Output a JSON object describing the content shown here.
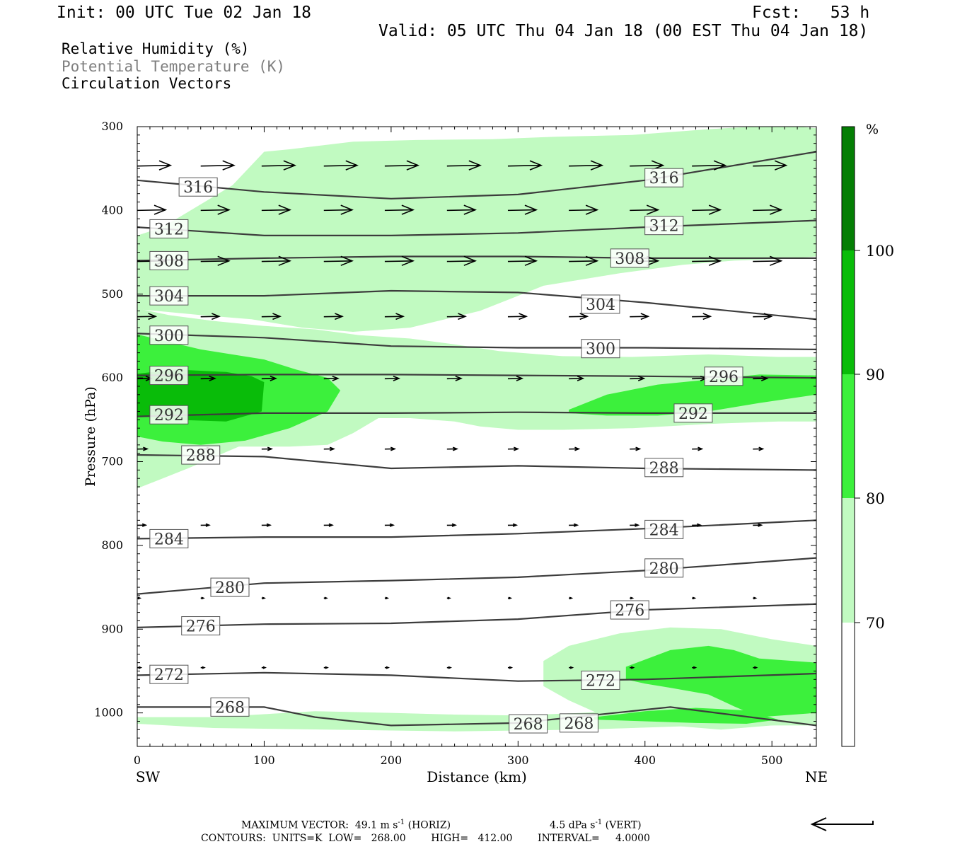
{
  "header": {
    "init": "Init: 00 UTC Tue 02 Jan 18",
    "fcst": "Fcst:   53 h",
    "valid": "Valid: 05 UTC Thu 04 Jan 18 (00 EST Thu 04 Jan 18)"
  },
  "fields": {
    "rh": "Relative Humidity (%)",
    "theta": "Potential Temperature (K)",
    "vectors": "Circulation Vectors"
  },
  "footer": {
    "max_prefix": "MAXIMUM VECTOR:  49.1 m s",
    "max_horiz": " (HORIZ)",
    "max_vert": "4.5 dPa s",
    "max_vert_suffix": " (VERT)",
    "exponent": "-1",
    "contours": "CONTOURS:  UNITS=K  LOW=   268.00        HIGH=   412.00        INTERVAL=     4.0000"
  },
  "colors": {
    "rh_70": "#c1fac1",
    "rh_80": "#3cf03c",
    "rh_90": "#09bc09",
    "rh_100": "#047e04",
    "contour": "#3c3c3c"
  },
  "chart_data": {
    "type": "cross-section",
    "xlabel": "Distance (km)",
    "ylabel": "Pressure (hPa)",
    "xlim": [
      0,
      535
    ],
    "ylim": [
      1040,
      300
    ],
    "x_ticks": [
      0,
      100,
      200,
      300,
      400,
      500
    ],
    "y_ticks": [
      300,
      400,
      500,
      600,
      700,
      800,
      900,
      1000
    ],
    "left_end_label": "SW",
    "right_end_label": "NE",
    "colorbar": {
      "unit": "%",
      "levels": [
        70,
        80,
        90,
        100
      ],
      "labels": [
        "70",
        "80",
        "90",
        "100"
      ]
    },
    "theta_contours": [
      {
        "value": 316,
        "x": [
          0,
          100,
          200,
          300,
          400,
          535
        ],
        "p": [
          364,
          378,
          386,
          381,
          364,
          330
        ]
      },
      {
        "value": 312,
        "x": [
          0,
          100,
          200,
          300,
          400,
          535
        ],
        "p": [
          420,
          430,
          430,
          427,
          420,
          412
        ]
      },
      {
        "value": 308,
        "x": [
          0,
          100,
          200,
          300,
          400,
          535
        ],
        "p": [
          460,
          457,
          455,
          455,
          457,
          457
        ]
      },
      {
        "value": 304,
        "x": [
          0,
          100,
          200,
          300,
          400,
          535
        ],
        "p": [
          502,
          502,
          496,
          498,
          510,
          530
        ]
      },
      {
        "value": 300,
        "x": [
          0,
          100,
          200,
          300,
          400,
          535
        ],
        "p": [
          547,
          552,
          562,
          564,
          564,
          566
        ]
      },
      {
        "value": 296,
        "x": [
          0,
          100,
          200,
          300,
          400,
          535
        ],
        "p": [
          597,
          596,
          596,
          597,
          598,
          600
        ]
      },
      {
        "value": 292,
        "x": [
          0,
          100,
          200,
          300,
          400,
          535
        ],
        "p": [
          646,
          642,
          642,
          641,
          642,
          642
        ]
      },
      {
        "value": 288,
        "x": [
          0,
          100,
          200,
          300,
          400,
          535
        ],
        "p": [
          692,
          694,
          708,
          705,
          708,
          710
        ]
      },
      {
        "value": 284,
        "x": [
          0,
          100,
          200,
          300,
          400,
          535
        ],
        "p": [
          792,
          790,
          790,
          786,
          780,
          770
        ]
      },
      {
        "value": 280,
        "x": [
          0,
          100,
          200,
          300,
          400,
          535
        ],
        "p": [
          858,
          845,
          842,
          838,
          830,
          815
        ]
      },
      {
        "value": 276,
        "x": [
          0,
          100,
          200,
          300,
          400,
          535
        ],
        "p": [
          898,
          894,
          893,
          888,
          877,
          870
        ]
      },
      {
        "value": 272,
        "x": [
          0,
          100,
          200,
          300,
          400,
          535
        ],
        "p": [
          955,
          952,
          955,
          962,
          960,
          953
        ]
      },
      {
        "value": 268,
        "x": [
          0,
          100,
          140,
          200,
          300,
          420,
          535
        ],
        "p": [
          993,
          993,
          1005,
          1015,
          1012,
          993,
          1015
        ]
      }
    ],
    "theta_labels": [
      {
        "value": 316,
        "x": 48,
        "p": 372
      },
      {
        "value": 316,
        "x": 415,
        "p": 361
      },
      {
        "value": 312,
        "x": 25,
        "p": 422
      },
      {
        "value": 312,
        "x": 415,
        "p": 418
      },
      {
        "value": 308,
        "x": 25,
        "p": 460
      },
      {
        "value": 308,
        "x": 388,
        "p": 457
      },
      {
        "value": 304,
        "x": 25,
        "p": 502
      },
      {
        "value": 304,
        "x": 365,
        "p": 512
      },
      {
        "value": 300,
        "x": 25,
        "p": 549
      },
      {
        "value": 300,
        "x": 365,
        "p": 565
      },
      {
        "value": 296,
        "x": 25,
        "p": 597
      },
      {
        "value": 296,
        "x": 462,
        "p": 598
      },
      {
        "value": 292,
        "x": 25,
        "p": 644
      },
      {
        "value": 292,
        "x": 438,
        "p": 642
      },
      {
        "value": 288,
        "x": 50,
        "p": 692
      },
      {
        "value": 288,
        "x": 415,
        "p": 707
      },
      {
        "value": 284,
        "x": 25,
        "p": 792
      },
      {
        "value": 284,
        "x": 415,
        "p": 781
      },
      {
        "value": 280,
        "x": 73,
        "p": 850
      },
      {
        "value": 280,
        "x": 415,
        "p": 827
      },
      {
        "value": 276,
        "x": 50,
        "p": 896
      },
      {
        "value": 276,
        "x": 388,
        "p": 877
      },
      {
        "value": 272,
        "x": 25,
        "p": 954
      },
      {
        "value": 272,
        "x": 365,
        "p": 961
      },
      {
        "value": 268,
        "x": 73,
        "p": 993
      },
      {
        "value": 268,
        "x": 308,
        "p": 1013
      },
      {
        "value": 268,
        "x": 348,
        "p": 1012
      }
    ],
    "rh_regions": [
      {
        "level": 70,
        "x": [
          0,
          20,
          75,
          100,
          120,
          170,
          220,
          280,
          330,
          390,
          450,
          510,
          535,
          535,
          510,
          470,
          430,
          380,
          320,
          270,
          215,
          170,
          130,
          90,
          50,
          15,
          0
        ],
        "p": [
          430,
          420,
          370,
          330,
          327,
          318,
          316,
          315,
          312,
          310,
          303,
          298,
          302,
          455,
          458,
          460,
          465,
          475,
          490,
          520,
          540,
          545,
          540,
          530,
          525,
          520,
          518
        ]
      },
      {
        "level": 70,
        "x": [
          0,
          25,
          60,
          100,
          140,
          175,
          215,
          250,
          285,
          335,
          390,
          450,
          505,
          535,
          535,
          505,
          450,
          390,
          335,
          300,
          270,
          250,
          215,
          190,
          170,
          150,
          120,
          80,
          40,
          20,
          0
        ],
        "p": [
          517,
          525,
          532,
          538,
          542,
          549,
          553,
          560,
          568,
          574,
          575,
          572,
          575,
          575,
          652,
          652,
          655,
          660,
          662,
          662,
          658,
          652,
          648,
          648,
          666,
          680,
          682,
          682,
          708,
          720,
          732
        ]
      },
      {
        "level": 70,
        "x": [
          320,
          340,
          380,
          420,
          460,
          500,
          535,
          535,
          500,
          460,
          420,
          380,
          340,
          320
        ],
        "p": [
          938,
          920,
          905,
          898,
          900,
          912,
          920,
          1010,
          1015,
          1020,
          1015,
          1012,
          985,
          968
        ]
      },
      {
        "level": 70,
        "x": [
          0,
          60,
          140,
          200,
          250,
          300,
          350,
          420,
          480,
          535,
          535,
          450,
          350,
          250,
          150,
          60,
          0
        ],
        "p": [
          1005,
          1005,
          998,
          1000,
          1002,
          1003,
          1000,
          993,
          996,
          1003,
          1015,
          1015,
          1020,
          1022,
          1020,
          1018,
          1013
        ]
      },
      {
        "level": 80,
        "x": [
          0,
          50,
          100,
          125,
          150,
          160,
          150,
          120,
          85,
          50,
          20,
          0
        ],
        "p": [
          548,
          566,
          578,
          590,
          600,
          615,
          640,
          660,
          675,
          680,
          676,
          670
        ]
      },
      {
        "level": 80,
        "x": [
          340,
          370,
          410,
          450,
          490,
          535,
          535,
          490,
          450,
          410,
          370,
          340
        ],
        "p": [
          638,
          620,
          608,
          602,
          596,
          597,
          620,
          630,
          640,
          645,
          645,
          642
        ]
      },
      {
        "level": 80,
        "x": [
          385,
          420,
          450,
          470,
          490,
          535,
          535,
          490,
          470,
          450,
          420,
          400,
          385
        ],
        "p": [
          945,
          925,
          920,
          925,
          935,
          940,
          1000,
          1005,
          992,
          978,
          970,
          965,
          960
        ]
      },
      {
        "level": 90,
        "x": [
          0,
          30,
          70,
          90,
          100,
          98,
          70,
          30,
          0
        ],
        "p": [
          595,
          590,
          593,
          598,
          605,
          640,
          652,
          650,
          645
        ]
      },
      {
        "level": 80,
        "x": [
          360,
          400,
          440,
          480,
          505,
          480,
          440,
          400,
          360
        ],
        "p": [
          1005,
          998,
          994,
          997,
          1008,
          1013,
          1012,
          1010,
          1008
        ]
      }
    ],
    "vector_rows": [
      {
        "p": 347,
        "len": 47,
        "xs": [
          0,
          50,
          98,
          147,
          195,
          244,
          292,
          340,
          388,
          437,
          485,
          535
        ]
      },
      {
        "p": 400,
        "len": 40,
        "xs": [
          0,
          50,
          98,
          147,
          195,
          244,
          292,
          340,
          388,
          437,
          485
        ]
      },
      {
        "p": 461,
        "len": 40,
        "xs": [
          0,
          50,
          98,
          147,
          195,
          244,
          292,
          340,
          388,
          437,
          485
        ]
      },
      {
        "p": 527,
        "len": 26,
        "xs": [
          0,
          50,
          98,
          147,
          195,
          244,
          292,
          340,
          388,
          437,
          485
        ]
      },
      {
        "p": 601,
        "len": 20,
        "xs": [
          0,
          50,
          98,
          147,
          195,
          244,
          292,
          340,
          388,
          437,
          485
        ]
      },
      {
        "p": 685,
        "len": 14,
        "xs": [
          0,
          50,
          98,
          147,
          195,
          244,
          292,
          340,
          388,
          437,
          485
        ]
      },
      {
        "p": 776,
        "len": 12,
        "xs": [
          0,
          50,
          98,
          147,
          195,
          244,
          292,
          340,
          388,
          437,
          485
        ]
      },
      {
        "p": 863,
        "len": 4,
        "xs": [
          0,
          50,
          98,
          147,
          195,
          244,
          292,
          340,
          388,
          437,
          485
        ]
      },
      {
        "p": 946,
        "len": 5,
        "xs": [
          0,
          50,
          98,
          147,
          195,
          244,
          292,
          340,
          388,
          437,
          485
        ]
      }
    ],
    "reference_vector": {
      "direction": "left"
    }
  }
}
